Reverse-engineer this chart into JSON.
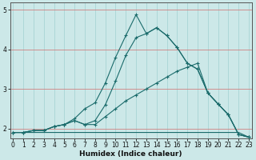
{
  "xlabel": "Humidex (Indice chaleur)",
  "x": [
    0,
    1,
    2,
    3,
    4,
    5,
    6,
    7,
    8,
    9,
    10,
    11,
    12,
    13,
    14,
    15,
    16,
    17,
    18,
    19,
    20,
    21,
    22,
    23
  ],
  "line1": [
    1.9,
    1.9,
    1.9,
    1.9,
    1.9,
    1.9,
    1.9,
    1.9,
    1.9,
    1.9,
    1.9,
    1.9,
    1.9,
    1.9,
    1.9,
    1.9,
    1.9,
    1.9,
    1.9,
    1.9,
    1.9,
    1.9,
    1.9,
    1.78
  ],
  "line2": [
    1.9,
    1.9,
    1.95,
    1.95,
    2.05,
    2.1,
    2.2,
    2.1,
    2.1,
    2.3,
    2.5,
    2.7,
    2.85,
    3.0,
    3.15,
    3.3,
    3.45,
    3.55,
    3.65,
    2.9,
    2.62,
    2.35,
    1.85,
    1.78
  ],
  "line3": [
    1.9,
    1.9,
    1.95,
    1.95,
    2.05,
    2.1,
    2.2,
    2.1,
    2.2,
    2.6,
    3.2,
    3.85,
    4.3,
    4.4,
    4.55,
    4.35,
    4.05,
    3.65,
    3.5,
    2.9,
    2.62,
    2.35,
    1.85,
    1.78
  ],
  "line4": [
    1.9,
    1.9,
    1.95,
    1.95,
    2.05,
    2.1,
    2.25,
    2.5,
    2.65,
    3.15,
    3.8,
    4.35,
    4.88,
    4.4,
    4.55,
    4.35,
    4.05,
    3.65,
    3.5,
    2.9,
    2.62,
    2.35,
    1.85,
    1.78
  ],
  "bg_color": "#cce8e8",
  "line_color": "#1a6b6b",
  "vgrid_color": "#a8d4d4",
  "hgrid_color": "#d08080",
  "ylim_bottom": 1.75,
  "ylim_top": 5.18,
  "yticks": [
    2,
    3,
    4,
    5
  ],
  "xticks": [
    0,
    1,
    2,
    3,
    4,
    5,
    6,
    7,
    8,
    9,
    10,
    11,
    12,
    13,
    14,
    15,
    16,
    17,
    18,
    19,
    20,
    21,
    22,
    23
  ],
  "tick_fontsize": 5.5,
  "xlabel_fontsize": 6.5
}
